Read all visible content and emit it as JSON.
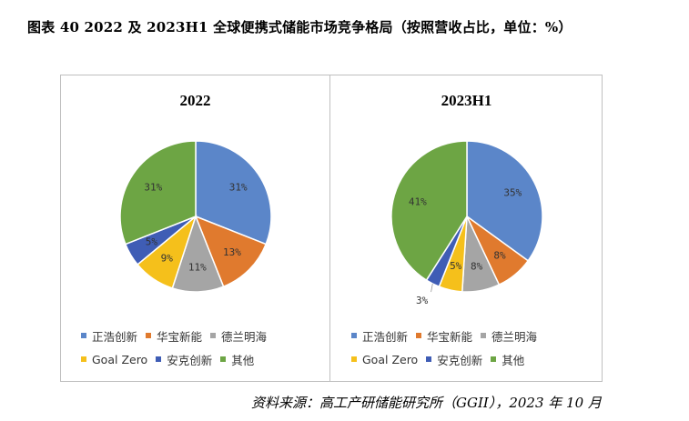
{
  "figure_title": "图表 40  2022 及 2023H1 全球便携式储能市场竞争格局（按照营收占比，单位：%）",
  "source": "资料来源：高工产研储能研究所（GGII），2023 年 10 月",
  "colors": {
    "正浩创新": "#5b86c9",
    "华宝新能": "#e07a2e",
    "德兰明海": "#a5a5a5",
    "Goal Zero": "#f5c01b",
    "安克创新": "#3f5db5",
    "其他": "#6da544"
  },
  "legend_rows": [
    [
      "正浩创新",
      "华宝新能",
      "德兰明海"
    ],
    [
      "Goal Zero",
      "安克创新",
      "其他"
    ]
  ],
  "chart_data": [
    {
      "type": "pie",
      "title": "2022",
      "categories": [
        "正浩创新",
        "华宝新能",
        "德兰明海",
        "Goal Zero",
        "安克创新",
        "其他"
      ],
      "values": [
        31,
        13,
        11,
        9,
        5,
        31
      ],
      "labels": [
        "31%",
        "13%",
        "11%",
        "9%",
        "5%",
        "31%"
      ],
      "legend_position": "bottom"
    },
    {
      "type": "pie",
      "title": "2023H1",
      "categories": [
        "正浩创新",
        "华宝新能",
        "德兰明海",
        "Goal Zero",
        "安克创新",
        "其他"
      ],
      "values": [
        35,
        8,
        8,
        5,
        3,
        41
      ],
      "labels": [
        "35%",
        "8%",
        "8%",
        "5%",
        "3%",
        "41%"
      ],
      "legend_position": "bottom"
    }
  ]
}
